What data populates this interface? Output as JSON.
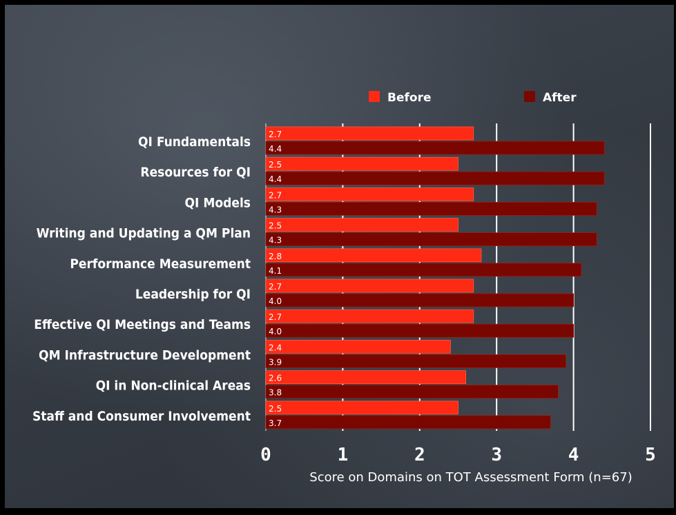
{
  "chart_data": {
    "type": "bar",
    "orientation": "horizontal",
    "categories": [
      "QI Fundamentals",
      "Resources for QI",
      "QI Models",
      "Writing and Updating a QM Plan",
      "Performance Measurement",
      "Leadership for QI",
      "Effective QI Meetings and Teams",
      "QM Infrastructure Development",
      "QI in Non-clinical Areas",
      "Staff and Consumer Involvement"
    ],
    "series": [
      {
        "name": "Before",
        "color": "#ff2a14",
        "values": [
          2.7,
          2.5,
          2.7,
          2.5,
          2.8,
          2.7,
          2.7,
          2.4,
          2.6,
          2.5
        ],
        "labels": [
          "2.7",
          "2.5",
          "2.7",
          "2.5",
          "2.8",
          "2.7",
          "2.7",
          "2.4",
          "2.6",
          "2.5"
        ]
      },
      {
        "name": "After",
        "color": "#7a0600",
        "values": [
          4.4,
          4.4,
          4.3,
          4.3,
          4.1,
          4.0,
          4.0,
          3.9,
          3.8,
          3.7
        ],
        "labels": [
          "4.4",
          "4.4",
          "4.3",
          "4.3",
          "4.1",
          "4.0",
          "4.0",
          "3.9",
          "3.8",
          "3.7"
        ]
      }
    ],
    "xlim": [
      0,
      5
    ],
    "ticks": [
      "0",
      "1",
      "2",
      "3",
      "4",
      "5"
    ],
    "xlabel": "Score on Domains on TOT Assessment Form (n=67)",
    "grid": true,
    "legend_position": "top"
  }
}
